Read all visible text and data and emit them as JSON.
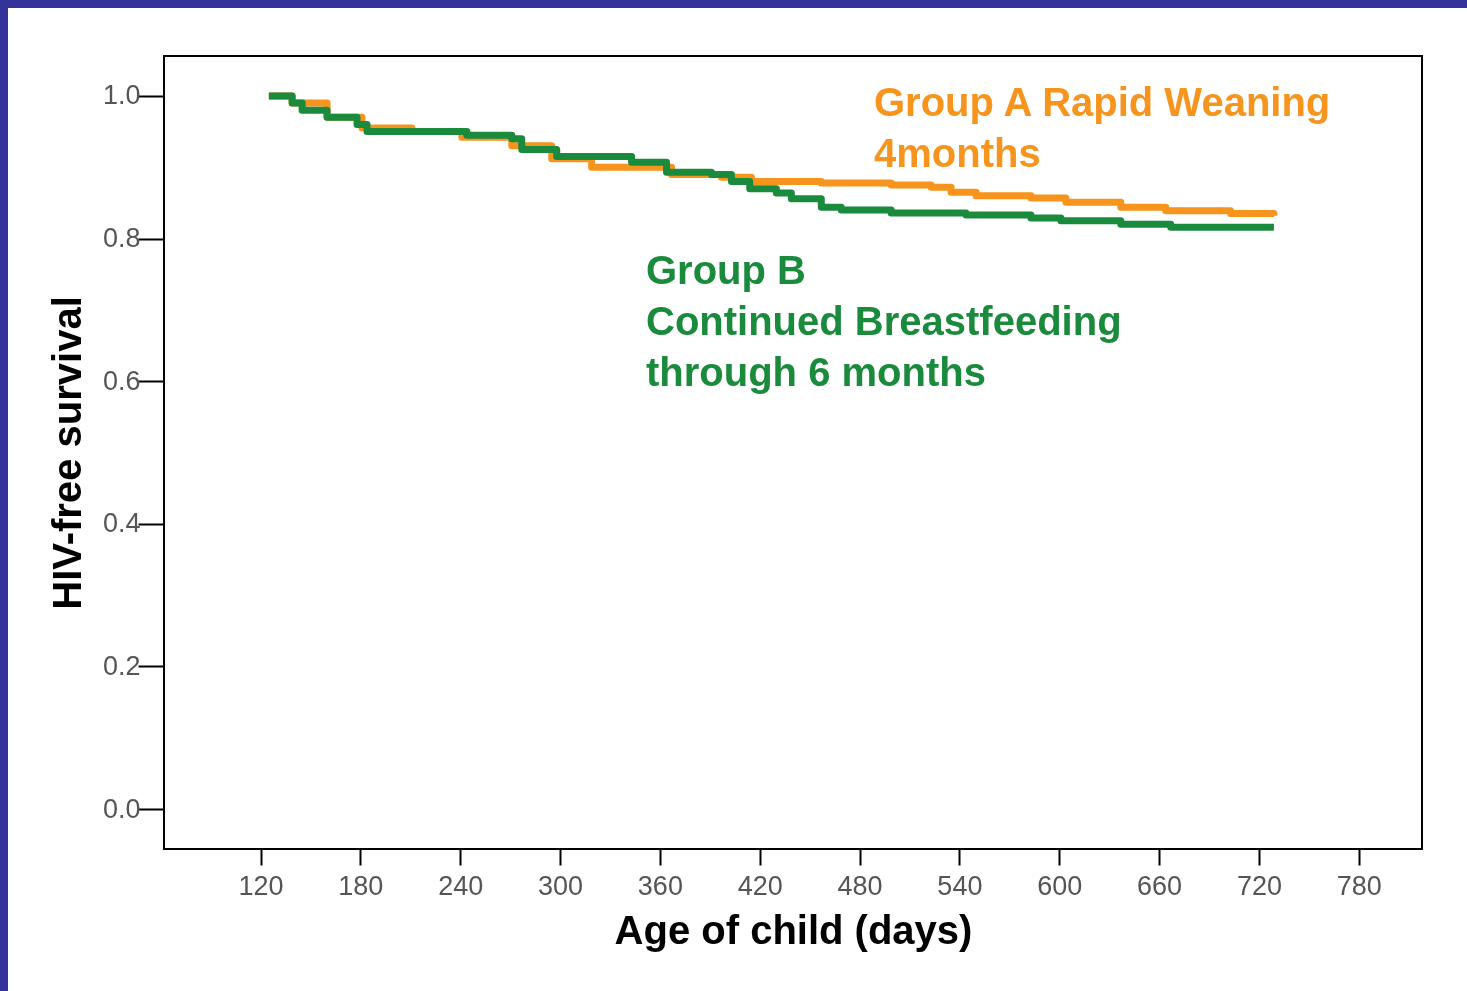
{
  "chart_data": {
    "type": "step",
    "xlabel": "Age of child (days)",
    "ylabel": "HIV-free survival",
    "xlim": [
      62,
      818
    ],
    "ylim": [
      -0.056,
      1.056
    ],
    "xticks": [
      120,
      180,
      240,
      300,
      360,
      420,
      480,
      540,
      600,
      660,
      720,
      780
    ],
    "yticks": [
      {
        "value": 0,
        "label": "0.0"
      },
      {
        "value": 0.2,
        "label": "0.2"
      },
      {
        "value": 0.4,
        "label": "0.4"
      },
      {
        "value": 0.6,
        "label": "0.6"
      },
      {
        "value": 0.8,
        "label": "0.8"
      },
      {
        "value": 1,
        "label": "1.0"
      }
    ],
    "grid": false,
    "legend": false,
    "series": [
      {
        "name": "Group A   Rapid Weaning\n4months",
        "color": "#f7941d",
        "x": [
          125,
          139,
          160,
          181,
          211,
          241,
          271,
          295,
          319,
          367,
          397,
          415,
          457,
          499,
          523,
          535,
          550,
          583,
          604,
          637,
          664,
          703,
          729
        ],
        "values": [
          1.0,
          0.99,
          0.97,
          0.955,
          0.95,
          0.942,
          0.93,
          0.912,
          0.9,
          0.89,
          0.886,
          0.88,
          0.878,
          0.875,
          0.872,
          0.865,
          0.86,
          0.857,
          0.851,
          0.844,
          0.839,
          0.835,
          0.832
        ]
      },
      {
        "name": "Group B\nContinued Breastfeeding\nthrough 6 months",
        "color": "#1a8a3c",
        "x": [
          125,
          139,
          145,
          160,
          178,
          184,
          214,
          244,
          271,
          277,
          298,
          343,
          364,
          391,
          403,
          414,
          430,
          439,
          457,
          469,
          499,
          544,
          583,
          601,
          637,
          667,
          729
        ],
        "values": [
          1.0,
          0.99,
          0.98,
          0.97,
          0.96,
          0.95,
          0.95,
          0.945,
          0.94,
          0.925,
          0.915,
          0.907,
          0.893,
          0.89,
          0.88,
          0.87,
          0.864,
          0.856,
          0.844,
          0.84,
          0.836,
          0.833,
          0.829,
          0.825,
          0.82,
          0.816,
          0.816
        ]
      }
    ]
  }
}
